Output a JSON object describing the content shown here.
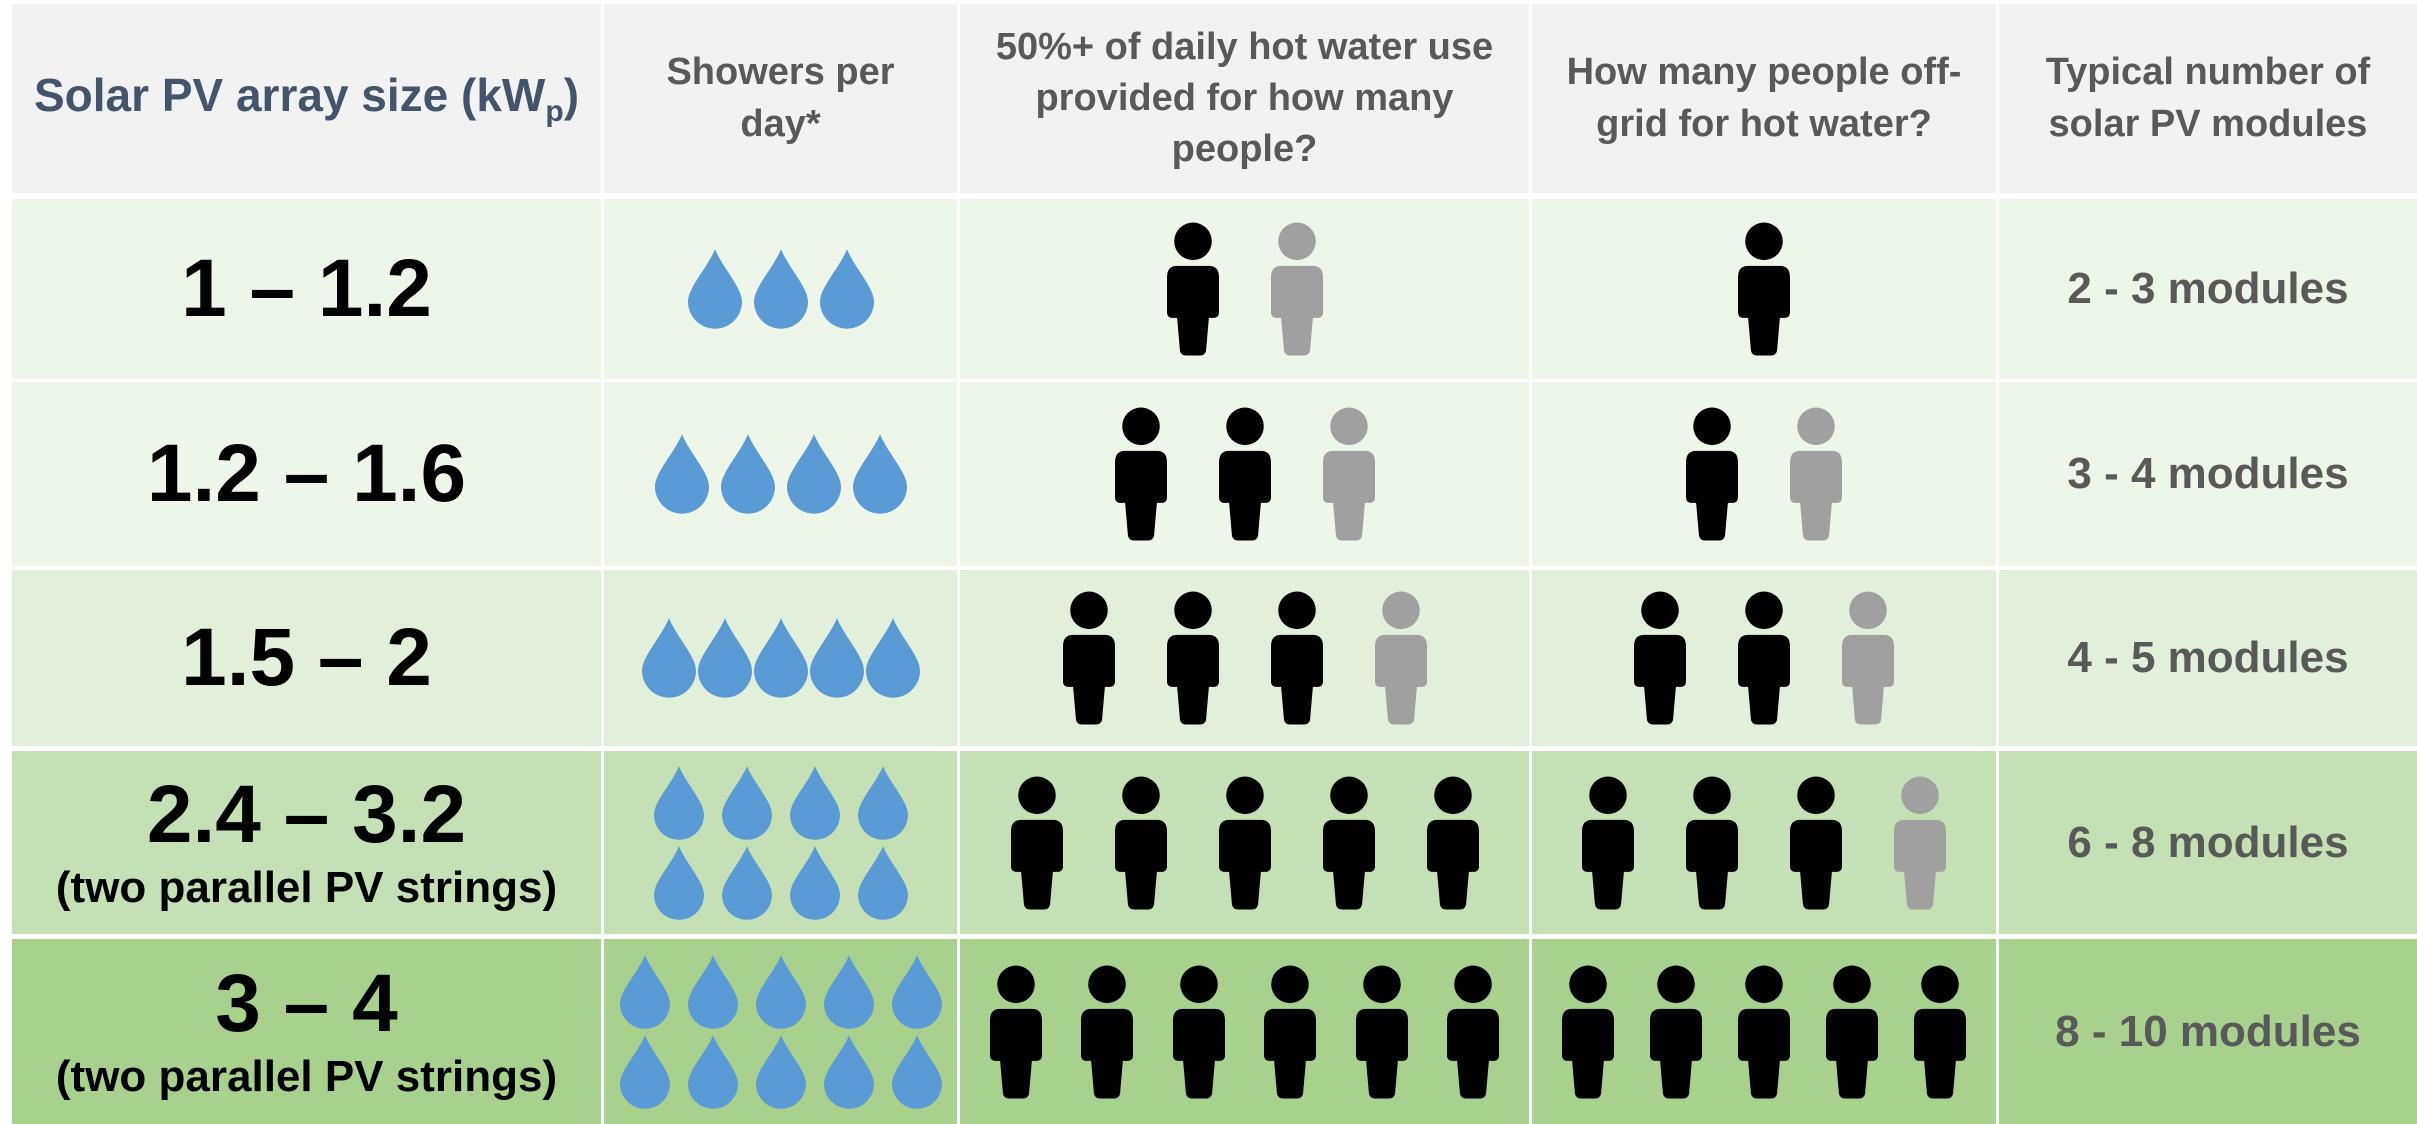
{
  "header": {
    "size": {
      "text": "Solar PV array size (kW",
      "sub": "p",
      "end": ")"
    },
    "showers": "Showers per day*",
    "half": "50%+ of daily hot water use provided for how many people?",
    "offgrid": "How many people off-grid for hot water?",
    "modules": "Typical number of solar PV modules"
  },
  "rows": [
    {
      "size": "1 – 1.2",
      "showers": 3,
      "half": {
        "full": 1,
        "partial": 1
      },
      "offgrid": {
        "full": 1
      },
      "modules": "2 - 3 modules"
    },
    {
      "size": "1.2 – 1.6",
      "showers": 4,
      "half": {
        "full": 2,
        "partial": 1
      },
      "offgrid": {
        "full": 1,
        "partial": 1
      },
      "modules": "3 - 4 modules"
    },
    {
      "size": "1.5 – 2",
      "showers": 5,
      "half": {
        "full": 3,
        "partial": 1
      },
      "offgrid": {
        "full": 2,
        "partial": 1
      },
      "modules": "4 - 5 modules"
    },
    {
      "size": "2.4 – 3.2",
      "note": "(two parallel PV strings)",
      "showers": 8,
      "half": {
        "full": 5
      },
      "offgrid": {
        "full": 3,
        "partial": 1
      },
      "modules": "6 - 8 modules"
    },
    {
      "size": "3 – 4",
      "note": "(two parallel PV strings)",
      "showers": 10,
      "half": {
        "full": 6
      },
      "offgrid": {
        "full": 5
      },
      "modules": "8 - 10 modules"
    }
  ]
}
